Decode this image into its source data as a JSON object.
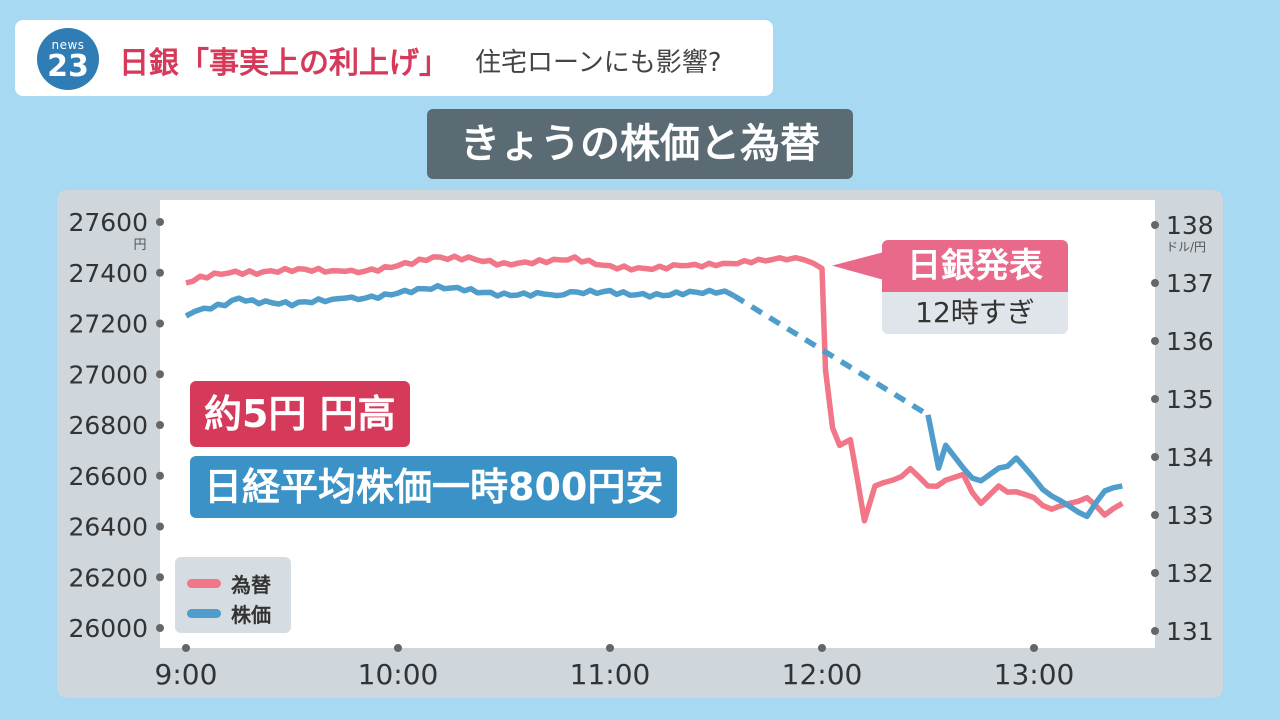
{
  "header": {
    "logo_small": "news",
    "logo_big": "23",
    "headline_red": "日銀「事実上の利上げ」",
    "headline_gray": "住宅ローンにも影響?"
  },
  "chart_title": "きょうの株価と為替",
  "annotations": {
    "yen": "約5円 円高",
    "nikkei": "日経平均株価一時800円安",
    "event_label": "日銀発表",
    "event_time": "12時すぎ"
  },
  "legend": {
    "fx": "為替",
    "stock": "株価"
  },
  "colors": {
    "fx": "#f07688",
    "stock": "#4f9dcb",
    "accent_red": "#d63a5a",
    "accent_blue": "#3b92c7"
  },
  "chart_data": {
    "type": "line",
    "x_ticks": [
      "9:00",
      "10:00",
      "11:00",
      "12:00",
      "13:00"
    ],
    "left_axis": {
      "unit": "円",
      "ticks": [
        27600,
        27400,
        27200,
        27000,
        26800,
        26600,
        26400,
        26200,
        26000
      ],
      "ylim": [
        26000,
        27600
      ]
    },
    "right_axis": {
      "unit": "ドル/円",
      "ticks": [
        138,
        137,
        136,
        135,
        134,
        133,
        132,
        131
      ],
      "ylim": [
        131,
        138
      ]
    },
    "grid": false,
    "legend_position": "bottom-left",
    "series": [
      {
        "name": "為替",
        "axis": "right",
        "x": [
          "9:00",
          "9:10",
          "9:20",
          "9:30",
          "9:45",
          "10:00",
          "10:10",
          "10:20",
          "10:30",
          "10:40",
          "10:50",
          "11:00",
          "11:10",
          "11:20",
          "11:30",
          "11:40",
          "11:50",
          "11:55",
          "12:00",
          "12:01",
          "12:03",
          "12:05",
          "12:08",
          "12:12",
          "12:15",
          "12:20",
          "12:25",
          "12:30",
          "12:35",
          "12:40",
          "12:45",
          "12:50",
          "12:55",
          "13:00",
          "13:05",
          "13:10",
          "13:15",
          "13:20",
          "13:25"
        ],
        "values": [
          137.0,
          137.15,
          137.15,
          137.2,
          137.2,
          137.3,
          137.45,
          137.45,
          137.35,
          137.4,
          137.45,
          137.3,
          137.25,
          137.3,
          137.3,
          137.35,
          137.4,
          137.4,
          137.25,
          135.5,
          134.5,
          134.2,
          134.3,
          132.9,
          133.5,
          133.6,
          133.8,
          133.5,
          133.6,
          133.7,
          133.2,
          133.5,
          133.4,
          133.3,
          133.1,
          133.2,
          133.3,
          133.0,
          133.2
        ]
      },
      {
        "name": "株価",
        "axis": "left",
        "x": [
          "9:00",
          "9:05",
          "9:15",
          "9:30",
          "9:45",
          "10:00",
          "10:15",
          "10:30",
          "10:45",
          "11:00",
          "11:15",
          "11:30",
          "11:35",
          "12:30",
          "12:33",
          "12:35",
          "12:40",
          "12:45",
          "12:50",
          "12:55",
          "13:00",
          "13:05",
          "13:10",
          "13:15",
          "13:20",
          "13:25"
        ],
        "values": [
          27230,
          27260,
          27300,
          27270,
          27300,
          27320,
          27340,
          27320,
          27310,
          27330,
          27310,
          27320,
          27310,
          26840,
          26630,
          26720,
          26630,
          26580,
          26630,
          26670,
          26590,
          26520,
          26480,
          26440,
          26540,
          26560
        ],
        "gap_dashed": [
          "11:35",
          "12:30"
        ]
      }
    ]
  }
}
